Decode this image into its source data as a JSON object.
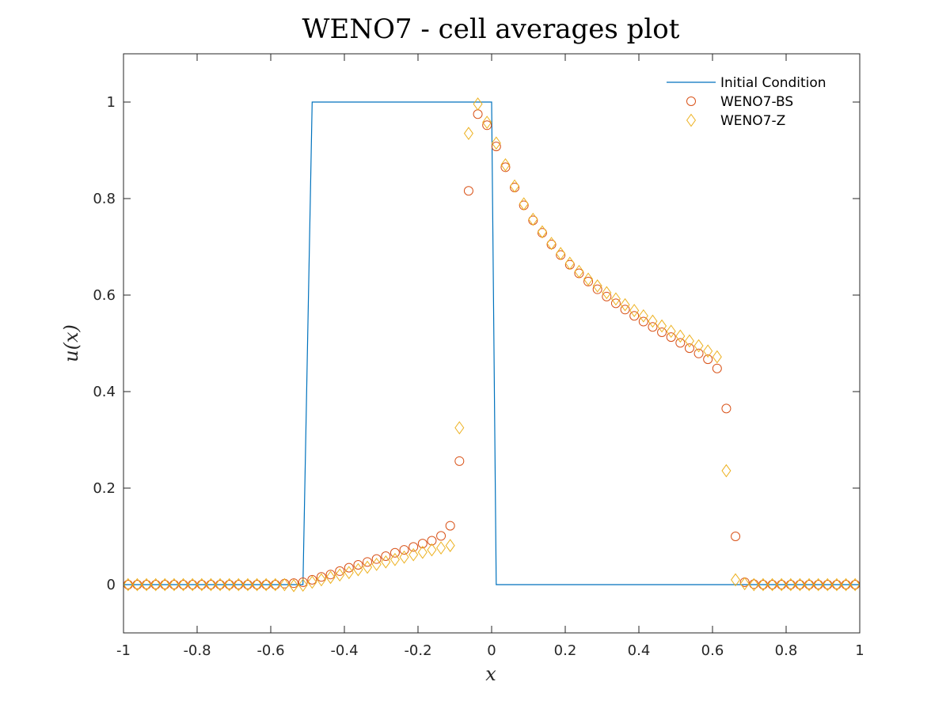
{
  "chart_data": {
    "type": "scatter",
    "title": "WENO7 - cell averages plot",
    "xlabel": "x",
    "ylabel": "u(x)",
    "xlim": [
      -1,
      1
    ],
    "ylim": [
      -0.1,
      1.1
    ],
    "xticks": [
      -1,
      -0.8,
      -0.6,
      -0.4,
      -0.2,
      0,
      0.2,
      0.4,
      0.6,
      0.8,
      1
    ],
    "xtick_labels": [
      "-1",
      "-0.8",
      "-0.6",
      "-0.4",
      "-0.2",
      "0",
      "0.2",
      "0.4",
      "0.6",
      "0.8",
      "1"
    ],
    "yticks": [
      0,
      0.2,
      0.4,
      0.6,
      0.8,
      1
    ],
    "ytick_labels": [
      "0",
      "0.2",
      "0.4",
      "0.6",
      "0.8",
      "1"
    ],
    "grid": false,
    "legend_position": "top-right",
    "series": [
      {
        "name": "Initial Condition",
        "kind": "line",
        "color": "#0072BD",
        "x": [
          -1,
          -0.5125,
          -0.4875,
          0.0,
          0.0125,
          1
        ],
        "y": [
          0,
          0,
          1,
          1,
          0,
          0
        ]
      },
      {
        "name": "WENO7-BS",
        "kind": "circle",
        "color": "#D95319",
        "x": [
          -0.9875,
          -0.9625,
          -0.9375,
          -0.9125,
          -0.8875,
          -0.8625,
          -0.8375,
          -0.8125,
          -0.7875,
          -0.7625,
          -0.7375,
          -0.7125,
          -0.6875,
          -0.6625,
          -0.6375,
          -0.6125,
          -0.5875,
          -0.5625,
          -0.5375,
          -0.5125,
          -0.4875,
          -0.4625,
          -0.4375,
          -0.4125,
          -0.3875,
          -0.3625,
          -0.3375,
          -0.3125,
          -0.2875,
          -0.2625,
          -0.2375,
          -0.2125,
          -0.1875,
          -0.1625,
          -0.1375,
          -0.1125,
          -0.0875,
          -0.0625,
          -0.0375,
          -0.0125,
          0.0125,
          0.0375,
          0.0625,
          0.0875,
          0.1125,
          0.1375,
          0.1625,
          0.1875,
          0.2125,
          0.2375,
          0.2625,
          0.2875,
          0.3125,
          0.3375,
          0.3625,
          0.3875,
          0.4125,
          0.4375,
          0.4625,
          0.4875,
          0.5125,
          0.5375,
          0.5625,
          0.5875,
          0.6125,
          0.6375,
          0.6625,
          0.6875,
          0.7125,
          0.7375,
          0.7625,
          0.7875,
          0.8125,
          0.8375,
          0.8625,
          0.8875,
          0.9125,
          0.9375,
          0.9625,
          0.9875
        ],
        "y": [
          0,
          0,
          0,
          0,
          0,
          0,
          0,
          0,
          0,
          0,
          0,
          0,
          0,
          0,
          0,
          0,
          0,
          0.002,
          0.003,
          0.005,
          0.01,
          0.016,
          0.021,
          0.028,
          0.035,
          0.041,
          0.047,
          0.053,
          0.059,
          0.066,
          0.072,
          0.078,
          0.085,
          0.091,
          0.101,
          0.122,
          0.256,
          0.816,
          0.975,
          0.952,
          0.908,
          0.865,
          0.823,
          0.786,
          0.755,
          0.729,
          0.705,
          0.683,
          0.663,
          0.645,
          0.628,
          0.612,
          0.597,
          0.583,
          0.57,
          0.557,
          0.545,
          0.534,
          0.523,
          0.513,
          0.501,
          0.49,
          0.479,
          0.467,
          0.448,
          0.365,
          0.1,
          0.005,
          0.001,
          0,
          0,
          0,
          0,
          0,
          0,
          0,
          0,
          0,
          0,
          0
        ]
      },
      {
        "name": "WENO7-Z",
        "kind": "diamond",
        "color": "#EDB120",
        "x": [
          -0.9875,
          -0.9625,
          -0.9375,
          -0.9125,
          -0.8875,
          -0.8625,
          -0.8375,
          -0.8125,
          -0.7875,
          -0.7625,
          -0.7375,
          -0.7125,
          -0.6875,
          -0.6625,
          -0.6375,
          -0.6125,
          -0.5875,
          -0.5625,
          -0.5375,
          -0.5125,
          -0.4875,
          -0.4625,
          -0.4375,
          -0.4125,
          -0.3875,
          -0.3625,
          -0.3375,
          -0.3125,
          -0.2875,
          -0.2625,
          -0.2375,
          -0.2125,
          -0.1875,
          -0.1625,
          -0.1375,
          -0.1125,
          -0.0875,
          -0.0625,
          -0.0375,
          -0.0125,
          0.0125,
          0.0375,
          0.0625,
          0.0875,
          0.1125,
          0.1375,
          0.1625,
          0.1875,
          0.2125,
          0.2375,
          0.2625,
          0.2875,
          0.3125,
          0.3375,
          0.3625,
          0.3875,
          0.4125,
          0.4375,
          0.4625,
          0.4875,
          0.5125,
          0.5375,
          0.5625,
          0.5875,
          0.6125,
          0.6375,
          0.6625,
          0.6875,
          0.7125,
          0.7375,
          0.7625,
          0.7875,
          0.8125,
          0.8375,
          0.8625,
          0.8875,
          0.9125,
          0.9375,
          0.9625,
          0.9875
        ],
        "y": [
          0,
          0,
          0,
          0,
          0,
          0,
          0,
          0,
          0,
          0,
          0,
          0,
          0,
          0,
          0,
          0,
          0,
          0,
          -0.002,
          -0.001,
          0.005,
          0.01,
          0.015,
          0.02,
          0.025,
          0.031,
          0.036,
          0.042,
          0.047,
          0.052,
          0.057,
          0.062,
          0.067,
          0.072,
          0.076,
          0.081,
          0.325,
          0.935,
          0.996,
          0.958,
          0.915,
          0.87,
          0.826,
          0.789,
          0.757,
          0.731,
          0.707,
          0.686,
          0.666,
          0.649,
          0.633,
          0.619,
          0.605,
          0.592,
          0.58,
          0.568,
          0.557,
          0.546,
          0.536,
          0.525,
          0.515,
          0.505,
          0.495,
          0.484,
          0.472,
          0.236,
          0.01,
          0.002,
          0,
          0,
          0,
          0,
          0,
          0,
          0,
          0,
          0,
          0,
          0,
          0
        ]
      }
    ]
  }
}
